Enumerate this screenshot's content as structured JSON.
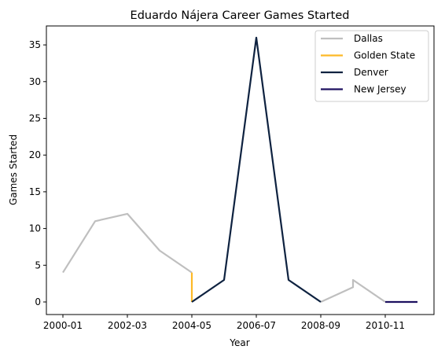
{
  "chart_data": {
    "type": "line",
    "title": "Eduardo Nájera Career Games Started",
    "xlabel": "Year",
    "ylabel": "Games Started",
    "x_ticks": [
      "2000-01",
      "2002-03",
      "2004-05",
      "2006-07",
      "2008-09",
      "2010-11"
    ],
    "x_domain": [
      2000,
      2012
    ],
    "ylim": [
      -1.8,
      37.8
    ],
    "y_ticks": [
      0,
      5,
      10,
      15,
      20,
      25,
      30,
      35
    ],
    "grid": false,
    "legend_position": "top-right",
    "series": [
      {
        "name": "Dallas",
        "color": "#bfbfbf",
        "points": [
          [
            2000,
            4
          ],
          [
            2001,
            11
          ],
          [
            2002,
            12
          ],
          [
            2003,
            7
          ],
          [
            2004,
            4
          ]
        ],
        "points_b": [
          [
            2008,
            0
          ],
          [
            2009,
            2
          ],
          [
            2009,
            3
          ],
          [
            2010,
            0
          ]
        ]
      },
      {
        "name": "Golden State",
        "color": "#fdb927",
        "points": [
          [
            2004,
            4
          ],
          [
            2004,
            0
          ]
        ]
      },
      {
        "name": "Denver",
        "color": "#0e2240",
        "points": [
          [
            2004,
            0
          ],
          [
            2005,
            3
          ],
          [
            2006,
            36
          ],
          [
            2007,
            3
          ],
          [
            2008,
            0
          ]
        ]
      },
      {
        "name": "New Jersey",
        "color": "#1d1160",
        "points": [
          [
            2010,
            0
          ],
          [
            2011,
            0
          ]
        ]
      }
    ]
  }
}
